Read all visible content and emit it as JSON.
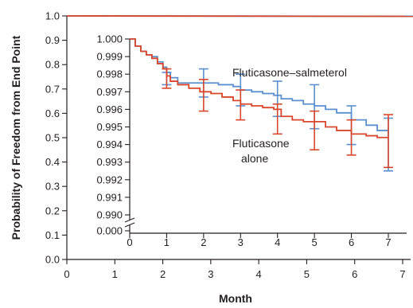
{
  "chart_data": {
    "type": "line",
    "xlabel": "Month",
    "ylabel": "Probability of Freedom from End Point",
    "main_axes": {
      "x_ticks": [
        "0",
        "1",
        "2",
        "3",
        "4",
        "5",
        "6",
        "7"
      ],
      "xlim": [
        0,
        7.3
      ],
      "y_ticks": [
        "0.0",
        "0.1",
        "0.2",
        "0.3",
        "0.4",
        "0.5",
        "0.6",
        "0.7",
        "0.8",
        "0.9",
        "1.0"
      ],
      "ylim": [
        0,
        1.0
      ]
    },
    "inset_axes": {
      "x_ticks": [
        "0",
        "1",
        "2",
        "3",
        "4",
        "5",
        "6",
        "7"
      ],
      "y_ticks": [
        "1.000",
        "0.999",
        "0.998",
        "0.997",
        "0.996",
        "0.995",
        "0.994",
        "0.993",
        "0.992",
        "0.991",
        "0.990",
        "0.000"
      ],
      "ylim": [
        0.99,
        1.0
      ],
      "axis_break": true
    },
    "colors": {
      "salmeterol": "#5b8fd0",
      "alone": "#d9472b"
    },
    "main_series": [
      {
        "key": "salmeterol",
        "x": [
          0,
          7.3
        ],
        "y": [
          1.0,
          0.9985
        ]
      },
      {
        "key": "alone",
        "x": [
          0,
          7.3
        ],
        "y": [
          1.0,
          0.9983
        ]
      }
    ],
    "series": [
      {
        "key": "salmeterol",
        "name": "Fluticasone–salmeterol",
        "label_lines": [
          "Fluticasone–salmeterol"
        ],
        "x": [
          0,
          0.15,
          0.3,
          0.45,
          0.6,
          0.75,
          0.9,
          1.0,
          1.1,
          1.3,
          1.6,
          2.0,
          2.4,
          2.8,
          3.0,
          3.3,
          3.6,
          3.9,
          4.1,
          4.4,
          4.7,
          5.0,
          5.3,
          5.6,
          6.0,
          6.4,
          6.7,
          7.0
        ],
        "y": [
          1.0,
          0.9996,
          0.9993,
          0.9991,
          0.999,
          0.9987,
          0.9984,
          0.9981,
          0.9978,
          0.9975,
          0.9975,
          0.9975,
          0.9974,
          0.9973,
          0.9971,
          0.997,
          0.9969,
          0.9968,
          0.9966,
          0.9965,
          0.9963,
          0.9962,
          0.996,
          0.9958,
          0.9954,
          0.9951,
          0.9948,
          0.9945
        ],
        "errorbars": [
          {
            "x": 1.0,
            "lo": 0.9974,
            "hi": 0.9981
          },
          {
            "x": 2.0,
            "lo": 0.9967,
            "hi": 0.9983
          },
          {
            "x": 3.0,
            "lo": 0.9962,
            "hi": 0.998
          },
          {
            "x": 4.0,
            "lo": 0.9956,
            "hi": 0.9976
          },
          {
            "x": 5.0,
            "lo": 0.9949,
            "hi": 0.9974
          },
          {
            "x": 6.0,
            "lo": 0.994,
            "hi": 0.9962
          },
          {
            "x": 7.0,
            "lo": 0.9925,
            "hi": 0.9955
          }
        ]
      },
      {
        "key": "alone",
        "name": "Fluticasone alone",
        "label_lines": [
          "Fluticasone",
          "alone"
        ],
        "x": [
          0,
          0.15,
          0.3,
          0.45,
          0.6,
          0.75,
          0.9,
          1.0,
          1.1,
          1.3,
          1.6,
          1.9,
          2.2,
          2.5,
          2.8,
          3.0,
          3.3,
          3.6,
          3.9,
          4.1,
          4.4,
          4.7,
          5.0,
          5.3,
          5.6,
          6.0,
          6.4,
          6.7,
          7.0
        ],
        "y": [
          1.0,
          0.9996,
          0.9993,
          0.9991,
          0.9989,
          0.9986,
          0.9983,
          0.9979,
          0.9976,
          0.9974,
          0.9972,
          0.997,
          0.9969,
          0.9967,
          0.9965,
          0.9963,
          0.9962,
          0.9961,
          0.996,
          0.9956,
          0.9954,
          0.9953,
          0.9953,
          0.995,
          0.9948,
          0.9946,
          0.9945,
          0.9944,
          0.9944
        ],
        "errorbars": [
          {
            "x": 1.0,
            "lo": 0.9972,
            "hi": 0.9983
          },
          {
            "x": 2.0,
            "lo": 0.9959,
            "hi": 0.9977
          },
          {
            "x": 3.0,
            "lo": 0.9954,
            "hi": 0.9971
          },
          {
            "x": 4.0,
            "lo": 0.9946,
            "hi": 0.9963
          },
          {
            "x": 5.0,
            "lo": 0.9937,
            "hi": 0.9959
          },
          {
            "x": 6.0,
            "lo": 0.9934,
            "hi": 0.9954
          },
          {
            "x": 7.0,
            "lo": 0.9927,
            "hi": 0.9957
          }
        ]
      }
    ]
  }
}
